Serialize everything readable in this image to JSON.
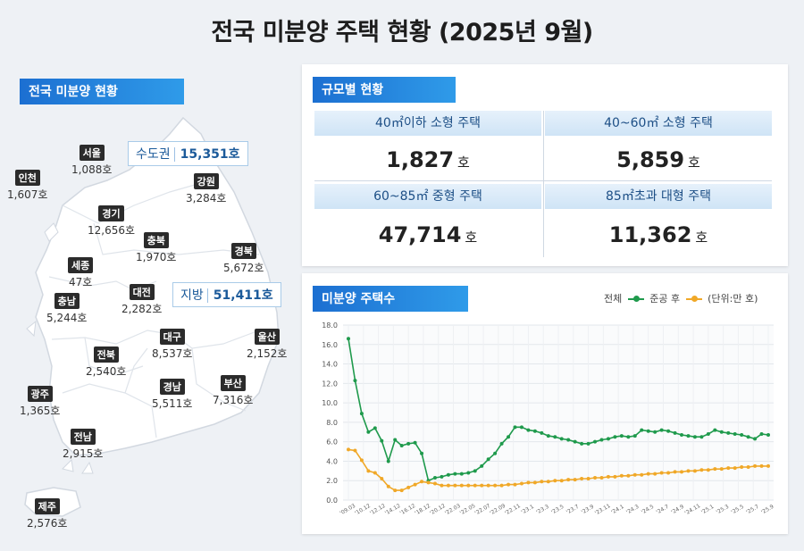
{
  "title": "전국 미분양 주택 현황  (2025년 9월)",
  "map_section": {
    "tag": "전국 미분양 현황",
    "capital": {
      "label": "수도권",
      "value": "15,351호"
    },
    "local": {
      "label": "지방",
      "value": "51,411호"
    },
    "regions": [
      {
        "name": "서울",
        "value": "1,088호"
      },
      {
        "name": "인천",
        "value": "1,607호"
      },
      {
        "name": "강원",
        "value": "3,284호"
      },
      {
        "name": "경기",
        "value": "12,656호"
      },
      {
        "name": "충북",
        "value": "1,970호"
      },
      {
        "name": "경북",
        "value": "5,672호"
      },
      {
        "name": "세종",
        "value": "47호"
      },
      {
        "name": "대전",
        "value": "2,282호"
      },
      {
        "name": "충남",
        "value": "5,244호"
      },
      {
        "name": "대구",
        "value": "8,537호"
      },
      {
        "name": "울산",
        "value": "2,152호"
      },
      {
        "name": "전북",
        "value": "2,540호"
      },
      {
        "name": "경남",
        "value": "5,511호"
      },
      {
        "name": "부산",
        "value": "7,316호"
      },
      {
        "name": "광주",
        "value": "1,365호"
      },
      {
        "name": "전남",
        "value": "2,915호"
      },
      {
        "name": "제주",
        "value": "2,576호"
      }
    ]
  },
  "scale_section": {
    "tag": "규모별 현황",
    "cells": [
      {
        "label": "40㎡이하 소형 주택",
        "value": "1,827",
        "unit": "호"
      },
      {
        "label": "40~60㎡ 소형 주택",
        "value": "5,859",
        "unit": "호"
      },
      {
        "label": "60~85㎡ 중형 주택",
        "value": "47,714",
        "unit": "호"
      },
      {
        "label": "85㎡초과 대형 주택",
        "value": "11,362",
        "unit": "호"
      }
    ]
  },
  "chart_section": {
    "tag": "미분양 주택수",
    "legend_total": "전체",
    "legend_completed": "준공 후",
    "unit_note": "(단위:만 호)"
  },
  "colors": {
    "total": "#1f9a4c",
    "completed": "#f0a828",
    "accent": "#1c6fd1"
  },
  "chart_data": {
    "type": "line",
    "ylim": [
      0,
      18
    ],
    "yticks": [
      "0.0",
      "2.0",
      "4.0",
      "6.0",
      "8.0",
      "10.0",
      "12.0",
      "14.0",
      "16.0",
      "18.0"
    ],
    "xticks": [
      "'09.03",
      "'10.12",
      "'12.12",
      "'14.12",
      "'16.12",
      "'18.12",
      "'20.12",
      "'22.03",
      "'22.05",
      "'22.07",
      "'22.09",
      "'22.11",
      "'23.1",
      "'23.3",
      "'23.5",
      "'23.7",
      "'23.9",
      "'23.11",
      "'24.1",
      "'24.3",
      "'24.5",
      "'24.7",
      "'24.9",
      "'24.11",
      "'25.1",
      "'25.3",
      "'25.5",
      "'25.7",
      "'25.9"
    ],
    "grid": true,
    "legend": "top-right",
    "series": [
      {
        "name": "전체",
        "values": [
          16.6,
          12.3,
          8.9,
          7.0,
          7.4,
          6.1,
          4.0,
          6.2,
          5.6,
          5.8,
          5.9,
          4.8,
          2.0,
          2.3,
          2.4,
          2.6,
          2.7,
          2.7,
          2.8,
          3.0,
          3.5,
          4.2,
          4.8,
          5.8,
          6.5,
          7.5,
          7.5,
          7.2,
          7.1,
          6.9,
          6.6,
          6.5,
          6.3,
          6.2,
          6.0,
          5.8,
          5.8,
          6.0,
          6.2,
          6.3,
          6.5,
          6.6,
          6.5,
          6.6,
          7.2,
          7.1,
          7.0,
          7.2,
          7.1,
          6.9,
          6.7,
          6.6,
          6.5,
          6.5,
          6.8,
          7.2,
          7.0,
          6.9,
          6.8,
          6.7,
          6.5,
          6.3,
          6.8,
          6.7
        ]
      },
      {
        "name": "준공 후",
        "values": [
          5.2,
          5.1,
          4.1,
          3.0,
          2.8,
          2.2,
          1.4,
          1.0,
          1.0,
          1.3,
          1.6,
          1.9,
          1.8,
          1.7,
          1.5,
          1.5,
          1.5,
          1.5,
          1.5,
          1.5,
          1.5,
          1.5,
          1.5,
          1.5,
          1.6,
          1.6,
          1.7,
          1.8,
          1.8,
          1.9,
          1.9,
          2.0,
          2.0,
          2.1,
          2.1,
          2.2,
          2.2,
          2.3,
          2.3,
          2.4,
          2.4,
          2.5,
          2.5,
          2.6,
          2.6,
          2.7,
          2.7,
          2.8,
          2.8,
          2.9,
          2.9,
          3.0,
          3.0,
          3.1,
          3.1,
          3.2,
          3.2,
          3.3,
          3.3,
          3.4,
          3.4,
          3.5,
          3.5,
          3.5
        ]
      }
    ]
  }
}
